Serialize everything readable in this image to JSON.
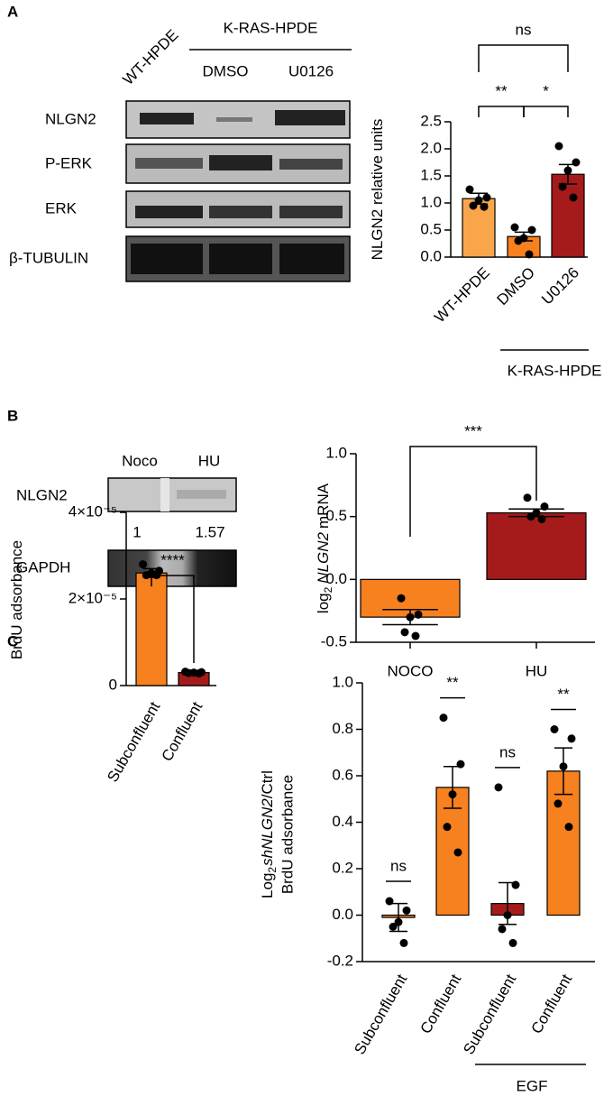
{
  "panels": {
    "a": "A",
    "b": "B",
    "c": "C"
  },
  "blot_a": {
    "lanes": [
      "WT-HPDE",
      "DMSO",
      "U0126"
    ],
    "group": "K-RAS-HPDE",
    "rows": [
      "NLGN2",
      "P-ERK",
      "ERK",
      "β-TUBULIN"
    ]
  },
  "blot_b": {
    "lanes": [
      "Noco",
      "HU"
    ],
    "rows": [
      "NLGN2",
      "GAPDH"
    ],
    "quantities": [
      1,
      1.57
    ]
  },
  "chart_data": [
    {
      "type": "bar",
      "ylabel_parts": [
        "NLGN2 relative units"
      ],
      "categories": [
        "WT-HPDE",
        "DMSO",
        "U0126"
      ],
      "values": [
        1.08,
        0.38,
        1.53
      ],
      "errors": [
        0.1,
        0.08,
        0.18
      ],
      "points": [
        [
          1.25,
          1.1,
          1.05,
          0.95,
          0.93
        ],
        [
          0.55,
          0.5,
          0.35,
          0.3,
          0.05
        ],
        [
          2.05,
          1.75,
          1.6,
          1.3,
          1.1
        ]
      ],
      "colors": [
        "#f9a64b",
        "#f7801f",
        "#a51b1b"
      ],
      "ylim": [
        0,
        2.5
      ],
      "yticks": [
        {
          "value": 0,
          "label": "0.0"
        },
        {
          "value": 0.5,
          "label": "0.5"
        },
        {
          "value": 1,
          "label": "1.0"
        },
        {
          "value": 1.5,
          "label": "1.5"
        },
        {
          "value": 2,
          "label": "2.0"
        },
        {
          "value": 2.5,
          "label": "2.5"
        }
      ],
      "significance": [
        "**",
        "*",
        "ns"
      ],
      "group_label": "K-RAS-HPDE"
    },
    {
      "type": "bar",
      "ylabel_parts": [
        "log",
        "2",
        "NLGN2",
        "mRNA"
      ],
      "categories": [
        "NOCO",
        "HU"
      ],
      "values": [
        -0.3,
        0.53
      ],
      "errors": [
        0.06,
        0.03
      ],
      "points": [
        [
          -0.15,
          -0.28,
          -0.3,
          -0.42,
          -0.45
        ],
        [
          0.65,
          0.58,
          0.53,
          0.5,
          0.48
        ]
      ],
      "colors": [
        "#f7801f",
        "#a51b1b"
      ],
      "ylim": [
        -0.5,
        1.0
      ],
      "yticks": [
        {
          "value": -0.5,
          "label": "-0.5"
        },
        {
          "value": 0,
          "label": "0.0"
        },
        {
          "value": 0.5,
          "label": "0.5"
        },
        {
          "value": 1,
          "label": "1.0"
        }
      ],
      "significance": [
        "***"
      ]
    },
    {
      "type": "bar",
      "ylabel_parts": [
        "BrdU adsorbance"
      ],
      "categories": [
        "Subconfluent",
        "Confluent"
      ],
      "values": [
        2.6e-05,
        3e-06
      ],
      "errors": [
        1e-06,
        3e-07
      ],
      "points": [
        [
          2.8e-05,
          2.65e-05,
          2.6e-05,
          2.55e-05,
          2.55e-05
        ],
        [
          3.2e-06,
          3.1e-06,
          3e-06,
          2.9e-06,
          2.8e-06
        ]
      ],
      "colors": [
        "#f7801f",
        "#a51b1b"
      ],
      "ylim": [
        0,
        4e-05
      ],
      "yticks": [
        0,
        {
          "value": 2e-05,
          "label": "2×10⁻⁵"
        },
        {
          "value": 4e-05,
          "label": "4×10⁻⁵"
        }
      ],
      "significance": [
        "****"
      ]
    },
    {
      "type": "bar",
      "ylabel_parts": [
        "Log",
        "2",
        "shNLGN2",
        "/Ctrl"
      ],
      "ylabel_line2": "BrdU adsorbance",
      "categories": [
        "Subconfluent",
        "Confluent",
        "Subconfluent",
        "Confluent"
      ],
      "values": [
        -0.01,
        0.55,
        0.05,
        0.62
      ],
      "errors": [
        0.06,
        0.09,
        0.09,
        0.1
      ],
      "points": [
        [
          0.06,
          0.02,
          -0.03,
          -0.05,
          -0.12
        ],
        [
          0.85,
          0.65,
          0.52,
          0.38,
          0.27
        ],
        [
          0.55,
          0.13,
          0.0,
          -0.06,
          -0.12
        ],
        [
          0.8,
          0.76,
          0.64,
          0.48,
          0.38
        ]
      ],
      "colors": [
        "#f7801f",
        "#f7801f",
        "#a51b1b",
        "#f7801f"
      ],
      "ylim": [
        -0.2,
        1.0
      ],
      "yticks": [
        {
          "value": -0.2,
          "label": "-0.2"
        },
        {
          "value": 0,
          "label": "0.0"
        },
        {
          "value": 0.2,
          "label": "0.2"
        },
        {
          "value": 0.4,
          "label": "0.4"
        },
        {
          "value": 0.6,
          "label": "0.6"
        },
        {
          "value": 0.8,
          "label": "0.8"
        },
        {
          "value": 1,
          "label": "1.0"
        }
      ],
      "significance": [
        "ns",
        "**",
        "ns",
        "**"
      ],
      "group_label": "EGF"
    }
  ]
}
